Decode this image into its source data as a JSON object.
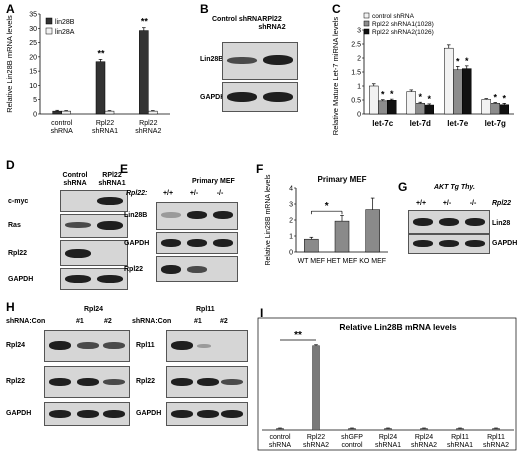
{
  "panels": {
    "A": "A",
    "B": "B",
    "C": "C",
    "D": "D",
    "E": "E",
    "F": "F",
    "G": "G",
    "H": "H",
    "I": "I"
  },
  "blots": {
    "B": {
      "headers": [
        "Control shRNA",
        "RPl22 shRNA2"
      ],
      "rows": [
        "Lin28B",
        "GAPDH"
      ]
    },
    "D": {
      "headers": [
        "Control shRNA",
        "RPl22 shRNA1"
      ],
      "rows": [
        "c-myc",
        "Ras",
        "Rpl22",
        "GAPDH"
      ]
    },
    "E": {
      "title": "Primary MEF",
      "genotype_label": "Rpl22:",
      "genotypes": [
        "+/+",
        "+/-",
        "-/-"
      ],
      "rows": [
        "Lin28B",
        "GAPDH",
        "Rpl22"
      ]
    },
    "G": {
      "title": "AKT Tg Thy.",
      "genotypes": [
        "+/+",
        "+/-",
        "-/-"
      ],
      "gene": "Rpl22",
      "rows": [
        "Lin28",
        "GAPDH"
      ]
    },
    "H_left": {
      "title": "Rpl24",
      "shrna_label": "shRNA:Con",
      "lanes": [
        "#1",
        "#2"
      ],
      "rows": [
        "Rpl24",
        "Rpl22",
        "GAPDH"
      ]
    },
    "H_right": {
      "title": "Rpl11",
      "shrna_label": "shRNA:Con",
      "lanes": [
        "#1",
        "#2"
      ],
      "rows": [
        "Rpl11",
        "Rpl22",
        "GAPDH"
      ]
    }
  },
  "chart_data": [
    {
      "panel": "A",
      "type": "bar",
      "categories": [
        "control shRNA",
        "Rpl22 shRNA1",
        "Rpl22 shRNA2"
      ],
      "series": [
        {
          "name": "lin28B",
          "values": [
            1,
            18.3,
            29.2
          ],
          "errors": [
            0.3,
            0.8,
            1.0
          ],
          "color": "#333333"
        },
        {
          "name": "lin28A",
          "values": [
            1,
            1,
            1
          ],
          "errors": [
            0.2,
            0.2,
            0.2
          ],
          "color": "#f2f2f2"
        }
      ],
      "ylabel": "Relative Lin28B mRNA levels",
      "ylim": [
        0,
        35
      ],
      "yticks": [
        0,
        5,
        10,
        15,
        20,
        25,
        30,
        35
      ],
      "annotations": [
        "**",
        "**"
      ],
      "legend": "top-left"
    },
    {
      "panel": "C",
      "type": "bar",
      "categories": [
        "let-7c",
        "let-7d",
        "let-7e",
        "let-7g"
      ],
      "series": [
        {
          "name": "control shRNA",
          "values": [
            1.0,
            0.8,
            2.35,
            0.52
          ],
          "errors": [
            0.08,
            0.06,
            0.12,
            0.03
          ],
          "color": "#f2f2f2"
        },
        {
          "name": "Rpl22 shRNA1(1028)",
          "values": [
            0.47,
            0.38,
            1.58,
            0.38
          ],
          "errors": [
            0.04,
            0.04,
            0.12,
            0.03
          ],
          "color": "#8c8c8c"
        },
        {
          "name": "Rpl22 shRNA2(1026)",
          "values": [
            0.49,
            0.32,
            1.62,
            0.33
          ],
          "errors": [
            0.04,
            0.04,
            0.1,
            0.05
          ],
          "color": "#111111"
        }
      ],
      "ylabel": "Relative Mature Let-7 miRNA levels",
      "ylim": [
        0,
        3
      ],
      "yticks": [
        0,
        0.5,
        1,
        1.5,
        2,
        2.5,
        3
      ],
      "annotations": [
        "*"
      ],
      "legend": "top"
    },
    {
      "panel": "F",
      "type": "bar",
      "title": "Primary MEF",
      "categories": [
        "WT MEF",
        "HET MEF",
        "KO MEF"
      ],
      "values": [
        0.8,
        1.93,
        2.65
      ],
      "errors": [
        0.12,
        0.35,
        0.72
      ],
      "color": "#8a8a8a",
      "ylabel": "Relative Lin28B mRNA levels",
      "ylim": [
        0,
        4
      ],
      "yticks": [
        0,
        1,
        2,
        3,
        4
      ],
      "annotations": [
        "*"
      ]
    },
    {
      "panel": "I",
      "type": "bar",
      "title": "Relative Lin28B mRNA levels",
      "categories": [
        "control shRNA",
        "Rpl22 shRNA2",
        "shGFP control",
        "Rpl24 shRNA1",
        "Rpl24 shRNA2",
        "Rpl11 shRNA1",
        "Rpl11 shRNA2"
      ],
      "values": [
        1,
        55,
        1,
        1,
        1,
        1,
        1
      ],
      "errors": [
        0.3,
        0.6,
        0.3,
        0.3,
        0.3,
        0.3,
        0.3
      ],
      "color": "#7a7a7a",
      "annotations": [
        "**"
      ]
    }
  ]
}
